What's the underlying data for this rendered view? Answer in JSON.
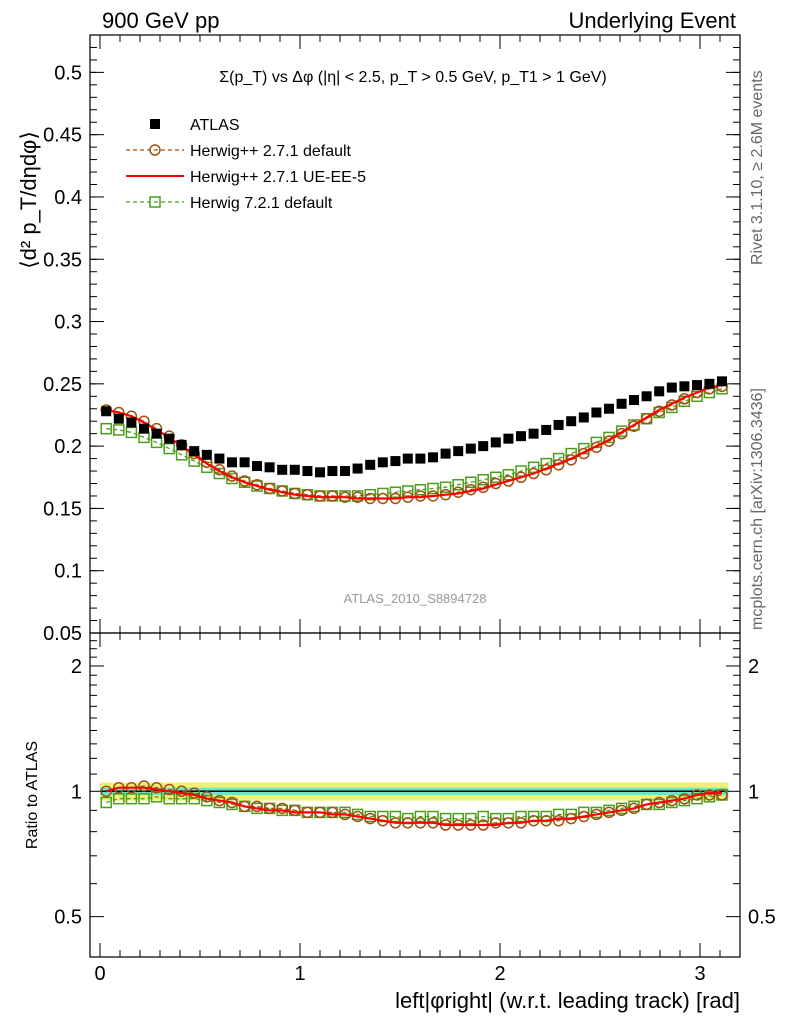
{
  "header": {
    "left": "900 GeV pp",
    "right": "Underlying Event"
  },
  "side": {
    "rivet": "Rivet 3.1.10, ≥ 2.6M events",
    "mcplots": "mcplots.cern.ch [arXiv:1306.3436]"
  },
  "colors": {
    "atlas": "#000000",
    "herwigpp_default": "#A05010",
    "herwigpp_ueee5": "#FF0000",
    "herwig7": "#4C9E1C",
    "band_inner": "#66E6CC",
    "band_outer": "#F0F078"
  },
  "chart_data": [
    {
      "type": "scatter",
      "title": "Σ(p_T) vs Δφ (|η| < 2.5, p_T > 0.5 GeV, p_T1 > 1 GeV)",
      "ylabel": "⟨d² p_T/dηdφ⟩",
      "watermark": "ATLAS_2010_S8894728",
      "ylim": [
        0.05,
        0.53
      ],
      "xlim": [
        -0.05,
        3.2
      ],
      "yticks": [
        "0.05",
        "0.1",
        "0.15",
        "0.2",
        "0.25",
        "0.3",
        "0.35",
        "0.4",
        "0.45",
        "0.5"
      ],
      "legend_position": "top-left",
      "x": [
        0.031,
        0.094,
        0.157,
        0.22,
        0.283,
        0.346,
        0.408,
        0.471,
        0.534,
        0.597,
        0.66,
        0.723,
        0.785,
        0.848,
        0.911,
        0.974,
        1.037,
        1.1,
        1.162,
        1.225,
        1.288,
        1.351,
        1.414,
        1.477,
        1.539,
        1.602,
        1.665,
        1.728,
        1.791,
        1.854,
        1.916,
        1.979,
        2.042,
        2.105,
        2.168,
        2.231,
        2.293,
        2.356,
        2.419,
        2.482,
        2.545,
        2.608,
        2.67,
        2.733,
        2.796,
        2.859,
        2.922,
        2.985,
        3.047,
        3.11
      ],
      "series": [
        {
          "name": "ATLAS",
          "marker": "square-filled",
          "values": [
            0.228,
            0.222,
            0.219,
            0.214,
            0.21,
            0.206,
            0.201,
            0.196,
            0.193,
            0.19,
            0.187,
            0.187,
            0.184,
            0.183,
            0.181,
            0.181,
            0.18,
            0.179,
            0.18,
            0.18,
            0.182,
            0.185,
            0.187,
            0.188,
            0.19,
            0.19,
            0.191,
            0.194,
            0.196,
            0.198,
            0.2,
            0.203,
            0.206,
            0.208,
            0.21,
            0.213,
            0.217,
            0.22,
            0.223,
            0.227,
            0.23,
            0.234,
            0.237,
            0.24,
            0.244,
            0.247,
            0.248,
            0.249,
            0.25,
            0.252
          ]
        },
        {
          "name": "Herwig++ 2.7.1 default",
          "marker": "circle-open-dashed",
          "values": [
            0.229,
            0.227,
            0.224,
            0.22,
            0.214,
            0.208,
            0.201,
            0.194,
            0.187,
            0.181,
            0.176,
            0.172,
            0.169,
            0.166,
            0.164,
            0.162,
            0.161,
            0.16,
            0.16,
            0.159,
            0.159,
            0.158,
            0.158,
            0.158,
            0.159,
            0.16,
            0.16,
            0.161,
            0.163,
            0.165,
            0.167,
            0.17,
            0.172,
            0.175,
            0.178,
            0.181,
            0.185,
            0.189,
            0.194,
            0.199,
            0.204,
            0.21,
            0.216,
            0.222,
            0.228,
            0.233,
            0.238,
            0.243,
            0.246,
            0.248
          ]
        },
        {
          "name": "Herwig++ 2.7.1 UE-EE-5",
          "marker": "line-solid",
          "values": [
            0.229,
            0.227,
            0.224,
            0.219,
            0.213,
            0.207,
            0.2,
            0.193,
            0.186,
            0.18,
            0.175,
            0.171,
            0.168,
            0.165,
            0.163,
            0.161,
            0.16,
            0.159,
            0.159,
            0.159,
            0.158,
            0.158,
            0.158,
            0.158,
            0.159,
            0.159,
            0.16,
            0.161,
            0.162,
            0.164,
            0.166,
            0.169,
            0.172,
            0.175,
            0.178,
            0.182,
            0.186,
            0.19,
            0.195,
            0.2,
            0.205,
            0.211,
            0.217,
            0.223,
            0.229,
            0.234,
            0.239,
            0.243,
            0.247,
            0.249
          ]
        },
        {
          "name": "Herwig 7.2.1 default",
          "marker": "square-open-dashed",
          "values": [
            0.214,
            0.213,
            0.211,
            0.207,
            0.203,
            0.198,
            0.193,
            0.188,
            0.183,
            0.178,
            0.174,
            0.171,
            0.168,
            0.166,
            0.164,
            0.162,
            0.161,
            0.16,
            0.16,
            0.16,
            0.16,
            0.161,
            0.162,
            0.163,
            0.164,
            0.165,
            0.166,
            0.167,
            0.169,
            0.171,
            0.173,
            0.175,
            0.177,
            0.18,
            0.183,
            0.186,
            0.19,
            0.194,
            0.198,
            0.203,
            0.207,
            0.212,
            0.217,
            0.222,
            0.227,
            0.231,
            0.236,
            0.24,
            0.243,
            0.246
          ]
        }
      ]
    },
    {
      "type": "scatter",
      "ylabel": "Ratio to ATLAS",
      "xlabel": "left|φright| (w.r.t. leading track) [rad]",
      "ylim": [
        0.4,
        2.4
      ],
      "ylog": true,
      "xlim": [
        -0.05,
        3.2
      ],
      "yticks": [
        "0.5",
        "1",
        "2"
      ],
      "xticks": [
        "0",
        "1",
        "2",
        "3"
      ],
      "reference_band": {
        "inner": 0.02,
        "outer": 0.05
      },
      "x": [
        0.031,
        0.094,
        0.157,
        0.22,
        0.283,
        0.346,
        0.408,
        0.471,
        0.534,
        0.597,
        0.66,
        0.723,
        0.785,
        0.848,
        0.911,
        0.974,
        1.037,
        1.1,
        1.162,
        1.225,
        1.288,
        1.351,
        1.414,
        1.477,
        1.539,
        1.602,
        1.665,
        1.728,
        1.791,
        1.854,
        1.916,
        1.979,
        2.042,
        2.105,
        2.168,
        2.231,
        2.293,
        2.356,
        2.419,
        2.482,
        2.545,
        2.608,
        2.67,
        2.733,
        2.796,
        2.859,
        2.922,
        2.985,
        3.047,
        3.11
      ],
      "series": [
        {
          "name": "Herwig++ 2.7.1 default",
          "marker": "circle-open-dashed",
          "values": [
            1.0,
            1.02,
            1.02,
            1.03,
            1.02,
            1.01,
            1.0,
            0.99,
            0.97,
            0.95,
            0.94,
            0.92,
            0.92,
            0.91,
            0.91,
            0.9,
            0.89,
            0.89,
            0.89,
            0.88,
            0.87,
            0.86,
            0.85,
            0.84,
            0.84,
            0.84,
            0.84,
            0.83,
            0.83,
            0.83,
            0.83,
            0.84,
            0.84,
            0.84,
            0.85,
            0.85,
            0.85,
            0.86,
            0.87,
            0.88,
            0.89,
            0.9,
            0.91,
            0.93,
            0.94,
            0.95,
            0.96,
            0.98,
            0.98,
            0.98
          ]
        },
        {
          "name": "Herwig++ 2.7.1 UE-EE-5",
          "marker": "line-solid",
          "values": [
            1.0,
            1.02,
            1.02,
            1.02,
            1.01,
            1.0,
            0.99,
            0.98,
            0.96,
            0.95,
            0.94,
            0.92,
            0.91,
            0.9,
            0.9,
            0.89,
            0.89,
            0.89,
            0.88,
            0.88,
            0.87,
            0.86,
            0.85,
            0.84,
            0.84,
            0.84,
            0.84,
            0.83,
            0.83,
            0.83,
            0.83,
            0.83,
            0.84,
            0.84,
            0.85,
            0.85,
            0.86,
            0.86,
            0.87,
            0.88,
            0.89,
            0.9,
            0.91,
            0.93,
            0.94,
            0.95,
            0.96,
            0.98,
            0.99,
            0.99
          ]
        },
        {
          "name": "Herwig 7.2.1 default",
          "marker": "square-open-dashed",
          "values": [
            0.94,
            0.96,
            0.96,
            0.96,
            0.97,
            0.96,
            0.96,
            0.96,
            0.95,
            0.94,
            0.93,
            0.92,
            0.91,
            0.91,
            0.9,
            0.9,
            0.89,
            0.89,
            0.89,
            0.89,
            0.88,
            0.87,
            0.87,
            0.87,
            0.86,
            0.87,
            0.87,
            0.86,
            0.86,
            0.86,
            0.87,
            0.86,
            0.86,
            0.87,
            0.87,
            0.87,
            0.88,
            0.88,
            0.89,
            0.89,
            0.9,
            0.91,
            0.92,
            0.93,
            0.93,
            0.94,
            0.95,
            0.96,
            0.97,
            0.98
          ]
        }
      ]
    }
  ]
}
